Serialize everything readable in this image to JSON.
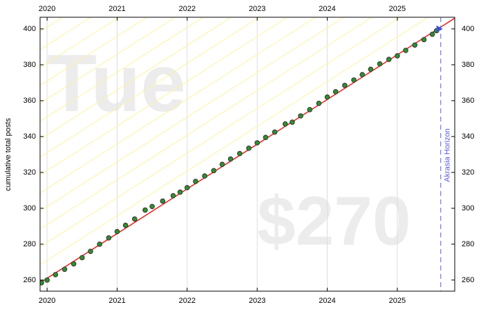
{
  "chart_data": {
    "type": "scatter",
    "ylabel": "cumulative total posts",
    "watermarks": [
      "Tue",
      "$270"
    ],
    "horizon_label": "Akrasia Horizon",
    "horizon_x": 2025.62,
    "xlim": [
      2019.9,
      2025.82
    ],
    "xticks": [
      2020,
      2021,
      2022,
      2023,
      2024,
      2025
    ],
    "ylim": [
      253.8,
      406.5
    ],
    "yticks": [
      260,
      280,
      300,
      320,
      340,
      360,
      380,
      400
    ],
    "grid": true,
    "road": {
      "color": "#e8221c",
      "x": [
        2019.9,
        2025.82
      ],
      "values": [
        258.5,
        406
      ]
    },
    "series": [
      {
        "color": "#2f8f2f",
        "x": [
          2019.92,
          2020,
          2020.12,
          2020.25,
          2020.38,
          2020.5,
          2020.62,
          2020.75,
          2020.88,
          2021,
          2021.12,
          2021.25,
          2021.4,
          2021.5,
          2021.65,
          2021.8,
          2021.9,
          2022,
          2022.12,
          2022.25,
          2022.38,
          2022.5,
          2022.62,
          2022.75,
          2022.88,
          2023,
          2023.12,
          2023.25,
          2023.4,
          2023.5,
          2023.62,
          2023.75,
          2023.88,
          2024,
          2024.12,
          2024.25,
          2024.38,
          2024.5,
          2024.62,
          2024.75,
          2024.88,
          2025,
          2025.12,
          2025.25,
          2025.38,
          2025.5,
          2025.56
        ],
        "values": [
          258.5,
          260,
          263,
          266,
          269,
          272.5,
          276,
          280,
          283.5,
          287,
          290.5,
          294,
          299,
          301,
          304,
          307,
          309,
          311.5,
          315,
          318,
          321,
          324.5,
          327.5,
          330.5,
          333.5,
          336.5,
          339.5,
          342.5,
          347,
          348,
          351.5,
          355,
          358.5,
          362,
          365,
          368.5,
          371.5,
          374.5,
          377.5,
          380.5,
          383,
          385,
          388,
          391,
          394,
          397,
          399
        ]
      }
    ],
    "goal": {
      "color": "#3a4fe0",
      "x": 2025.6,
      "value": 400
    }
  }
}
